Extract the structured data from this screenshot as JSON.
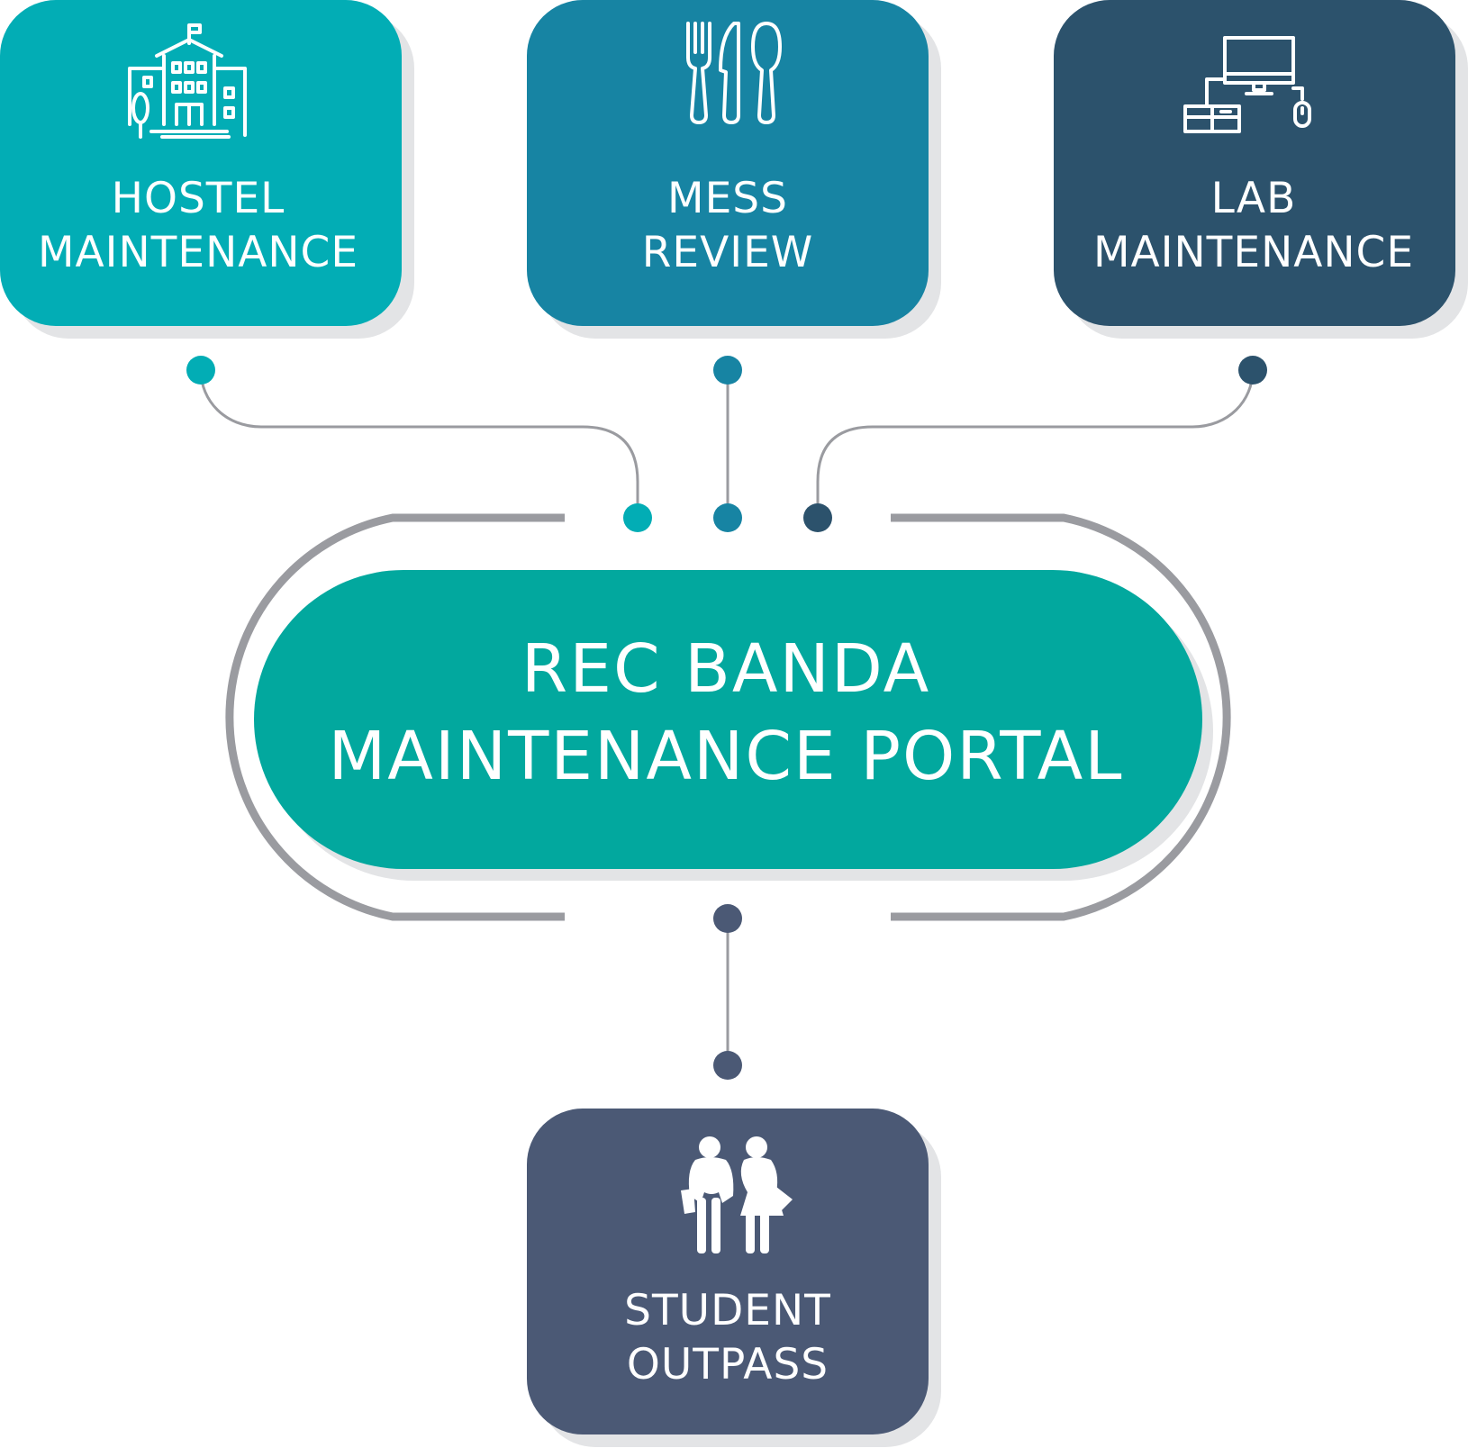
{
  "center": {
    "line1": "REC BANDA",
    "line2": "MAINTENANCE PORTAL",
    "color": "#02a89e"
  },
  "hostel": {
    "line1": "HOSTEL",
    "line2": "MAINTENANCE",
    "icon": "building-icon",
    "color": "#02adb5"
  },
  "mess": {
    "line1": "MESS",
    "line2": "REVIEW",
    "icon": "cutlery-icon",
    "color": "#1784a3"
  },
  "lab": {
    "line1": "LAB",
    "line2": "MAINTENANCE",
    "icon": "computer-icon",
    "color": "#2c526c"
  },
  "outpass": {
    "line1": "STUDENT",
    "line2": "OUTPASS",
    "icon": "students-icon",
    "color": "#4b5975"
  },
  "connector_color": "#9a9ba0"
}
